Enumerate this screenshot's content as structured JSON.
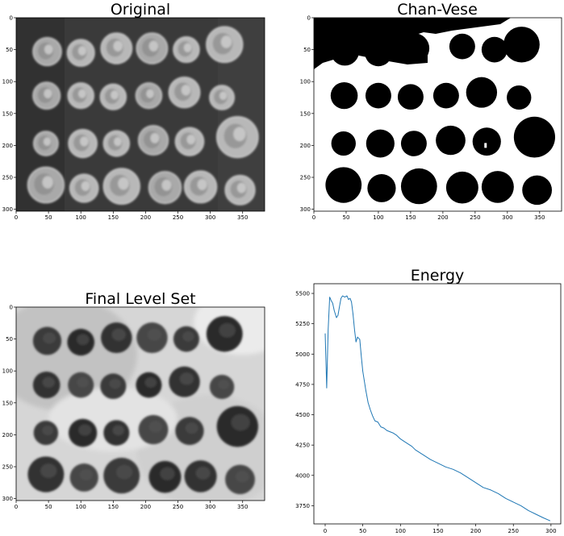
{
  "figure": {
    "panels": [
      {
        "title": "Original",
        "xticks": [
          "0",
          "50",
          "100",
          "150",
          "200",
          "250",
          "300",
          "350"
        ],
        "yticks": [
          "0",
          "50",
          "100",
          "150",
          "200",
          "250",
          "300"
        ]
      },
      {
        "title": "Chan-Vese",
        "xticks": [
          "0",
          "50",
          "100",
          "150",
          "200",
          "250",
          "300",
          "350"
        ],
        "yticks": [
          "0",
          "50",
          "100",
          "150",
          "200",
          "250",
          "300"
        ]
      },
      {
        "title": "Final Level Set",
        "xticks": [
          "0",
          "50",
          "100",
          "150",
          "200",
          "250",
          "300",
          "350"
        ],
        "yticks": [
          "0",
          "50",
          "100",
          "150",
          "200",
          "250",
          "300"
        ]
      },
      {
        "title": "Energy",
        "xticks": [
          "0",
          "50",
          "100",
          "150",
          "200",
          "250",
          "300"
        ],
        "yticks": [
          "5500",
          "5250",
          "5000",
          "4750",
          "4500",
          "4250",
          "4000",
          "3750"
        ]
      }
    ]
  },
  "chart_data": [
    {
      "type": "image",
      "title": "Original",
      "xlim": [
        0,
        384
      ],
      "ylim": [
        303,
        0
      ],
      "xticks": [
        0,
        50,
        100,
        150,
        200,
        250,
        300,
        350
      ],
      "yticks": [
        0,
        50,
        100,
        150,
        200,
        250,
        300
      ],
      "colormap": "gray"
    },
    {
      "type": "image",
      "title": "Chan-Vese",
      "xlim": [
        0,
        384
      ],
      "ylim": [
        303,
        0
      ],
      "xticks": [
        0,
        50,
        100,
        150,
        200,
        250,
        300,
        350
      ],
      "yticks": [
        0,
        50,
        100,
        150,
        200,
        250,
        300
      ],
      "colormap": "binary"
    },
    {
      "type": "image",
      "title": "Final Level Set",
      "xlim": [
        0,
        384
      ],
      "ylim": [
        303,
        0
      ],
      "xticks": [
        0,
        50,
        100,
        150,
        200,
        250,
        300,
        350
      ],
      "yticks": [
        0,
        50,
        100,
        150,
        200,
        250,
        300
      ],
      "colormap": "gray"
    },
    {
      "type": "line",
      "title": "Energy",
      "xlim": [
        -15,
        313
      ],
      "ylim": [
        3600,
        5580
      ],
      "xticks": [
        0,
        50,
        100,
        150,
        200,
        250,
        300
      ],
      "yticks": [
        5500,
        5250,
        5000,
        4750,
        4500,
        4250,
        4000,
        3750
      ],
      "series": [
        {
          "color": "#1f77b4",
          "x": [
            0,
            2,
            4,
            6,
            8,
            10,
            12,
            15,
            17,
            19,
            21,
            23,
            26,
            29,
            31,
            33,
            35,
            37,
            39,
            41,
            43,
            46,
            48,
            50,
            52,
            54,
            57,
            60,
            63,
            66,
            70,
            74,
            78,
            82,
            86,
            90,
            95,
            100,
            105,
            110,
            115,
            120,
            130,
            140,
            150,
            160,
            170,
            180,
            190,
            200,
            210,
            220,
            230,
            240,
            250,
            260,
            270,
            280,
            290,
            299
          ],
          "y": [
            5170,
            4720,
            5200,
            5470,
            5440,
            5420,
            5360,
            5300,
            5320,
            5390,
            5460,
            5480,
            5470,
            5480,
            5450,
            5460,
            5430,
            5330,
            5200,
            5100,
            5140,
            5120,
            4980,
            4860,
            4780,
            4700,
            4600,
            4540,
            4490,
            4450,
            4440,
            4400,
            4390,
            4370,
            4360,
            4350,
            4330,
            4300,
            4280,
            4260,
            4240,
            4210,
            4170,
            4130,
            4100,
            4070,
            4050,
            4020,
            3980,
            3940,
            3900,
            3880,
            3850,
            3810,
            3780,
            3750,
            3710,
            3680,
            3650,
            3625
          ]
        }
      ]
    }
  ]
}
